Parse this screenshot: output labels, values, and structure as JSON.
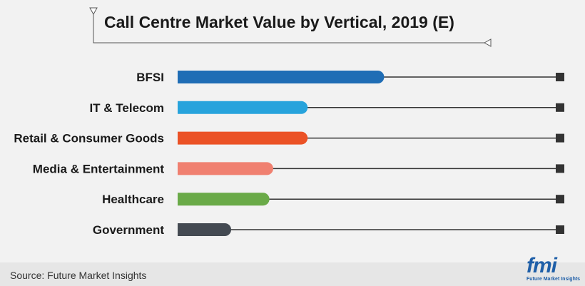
{
  "chart_data": {
    "type": "bar",
    "orientation": "horizontal",
    "title": "Call Centre Market Value by Vertical, 2019 (E)",
    "categories": [
      "BFSI",
      "IT & Telecom",
      "Retail & Consumer Goods",
      "Media & Entertainment",
      "Healthcare",
      "Government"
    ],
    "values": [
      54,
      34,
      34,
      25,
      24,
      14
    ],
    "value_scale": "relative share of track length (no axis printed)",
    "xlim": [
      0,
      100
    ],
    "colors": [
      "#1f6db5",
      "#27a3dc",
      "#eb5226",
      "#f08070",
      "#6aaa48",
      "#444a52"
    ],
    "grid": false,
    "legend": "none"
  },
  "footer": {
    "source": "Source: Future Market Insights",
    "logo_text": "fmi",
    "logo_subtext": "Future Market Insights"
  }
}
